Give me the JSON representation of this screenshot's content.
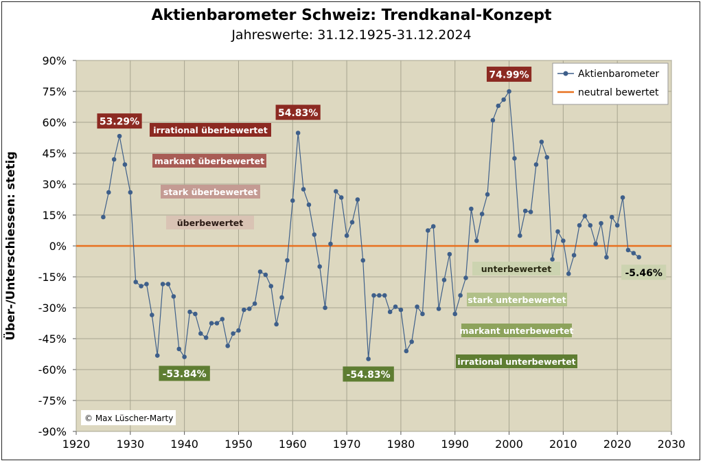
{
  "title": "Aktienbarometer  Schweiz: Trendkanal-Konzept",
  "subtitle": "Jahreswerte: 31.12.1925-31.12.2024",
  "copyright": "© Max Lüscher-Marty",
  "colors": {
    "plot_bg": "#ddd8c0",
    "grid": "#a7a48f",
    "series": "#3e5f8a",
    "neutral": "#e8701e"
  },
  "chart_data": {
    "type": "line",
    "ylabel": "Über-/Unterschiessen: stetig",
    "xlabel": "",
    "xlim": [
      1920,
      2030
    ],
    "ylim": [
      -90,
      90
    ],
    "x_ticks": [
      1920,
      1930,
      1940,
      1950,
      1960,
      1970,
      1980,
      1990,
      2000,
      2010,
      2020,
      2030
    ],
    "y_ticks": [
      90,
      75,
      60,
      45,
      30,
      15,
      0,
      -15,
      -30,
      -45,
      -60,
      -75,
      -90
    ],
    "y_tick_labels": [
      "90%",
      "75%",
      "60%",
      "45%",
      "30%",
      "15%",
      "0%",
      "-15%",
      "-30%",
      "-45%",
      "-60%",
      "-75%",
      "-90%"
    ],
    "grid": true,
    "legend_position": "top-right",
    "legend": [
      {
        "label": "Aktienbarometer",
        "kind": "line-marker"
      },
      {
        "label": "neutral bewertet",
        "kind": "line"
      }
    ],
    "series": [
      {
        "name": "Aktienbarometer",
        "x": [
          1925,
          1926,
          1927,
          1928,
          1929,
          1930,
          1931,
          1932,
          1933,
          1934,
          1935,
          1936,
          1937,
          1938,
          1939,
          1940,
          1941,
          1942,
          1943,
          1944,
          1945,
          1946,
          1947,
          1948,
          1949,
          1950,
          1951,
          1952,
          1953,
          1954,
          1955,
          1956,
          1957,
          1958,
          1959,
          1960,
          1961,
          1962,
          1963,
          1964,
          1965,
          1966,
          1967,
          1968,
          1969,
          1970,
          1971,
          1972,
          1973,
          1974,
          1975,
          1976,
          1977,
          1978,
          1979,
          1980,
          1981,
          1982,
          1983,
          1984,
          1985,
          1986,
          1987,
          1988,
          1989,
          1990,
          1991,
          1992,
          1993,
          1994,
          1995,
          1996,
          1997,
          1998,
          1999,
          2000,
          2001,
          2002,
          2003,
          2004,
          2005,
          2006,
          2007,
          2008,
          2009,
          2010,
          2011,
          2012,
          2013,
          2014,
          2015,
          2016,
          2017,
          2018,
          2019,
          2020,
          2021,
          2022,
          2023,
          2024
        ],
        "y": [
          14,
          26,
          42,
          53.29,
          39.5,
          26,
          -17.5,
          -19.5,
          -18.5,
          -33.5,
          -53.2,
          -18.5,
          -18.5,
          -24.5,
          -50,
          -53.84,
          -32,
          -33,
          -42.5,
          -44.5,
          -37.5,
          -37.5,
          -35.5,
          -48.5,
          -42.5,
          -41,
          -31,
          -30.5,
          -28,
          -12.5,
          -14,
          -19.5,
          -38,
          -25,
          -7,
          22,
          54.83,
          27.5,
          20,
          5.5,
          -10,
          -30,
          1,
          26.5,
          23.5,
          5,
          11.5,
          22.5,
          -7,
          -54.83,
          -24,
          -24,
          -24,
          -32,
          -29.5,
          -31,
          -51,
          -46.5,
          -29.5,
          -33,
          7.5,
          9.5,
          -30.5,
          -16.5,
          -4,
          -33,
          -24,
          -15.5,
          18,
          2.5,
          15.5,
          25,
          61,
          68,
          71,
          74.99,
          42.5,
          5,
          17,
          16.5,
          39.5,
          50.5,
          43,
          -6.5,
          7,
          2.5,
          -13.5,
          -4.5,
          10,
          14.5,
          10,
          1,
          11,
          -5.5,
          14,
          10,
          23.5,
          -2,
          -3.5,
          -5.46
        ]
      },
      {
        "name": "neutral bewertet",
        "x": [
          1920,
          2030
        ],
        "y": [
          0,
          0
        ]
      }
    ],
    "annotations": {
      "value_labels": [
        {
          "text": "53.29%",
          "x": 1928,
          "y": 53.29,
          "kind": "high"
        },
        {
          "text": "54.83%",
          "x": 1961,
          "y": 54.83,
          "kind": "high"
        },
        {
          "text": "74.99%",
          "x": 2000,
          "y": 74.99,
          "kind": "high"
        },
        {
          "text": "-53.84%",
          "x": 1940,
          "y": -53.84,
          "kind": "low"
        },
        {
          "text": "-54.83%",
          "x": 1974,
          "y": -54.83,
          "kind": "low"
        },
        {
          "text": "-5.46%",
          "x": 2024,
          "y": -5.46,
          "kind": "low-light"
        }
      ],
      "zones": [
        {
          "text": "irrational überbewertet",
          "color": "#8c2a22"
        },
        {
          "text": "markant überbewertet",
          "color": "#a85c55"
        },
        {
          "text": "stark überbewertet",
          "color": "#c49b93"
        },
        {
          "text": "überbewertet",
          "color": "#d9c3b4"
        },
        {
          "text": "unterbewertet",
          "color": "#ccd3b0"
        },
        {
          "text": "stark unterbewertet",
          "color": "#b0c088"
        },
        {
          "text": "markant unterbewertet",
          "color": "#8da35c"
        },
        {
          "text": "irrational unterbewertet",
          "color": "#5e7d32"
        }
      ]
    }
  }
}
